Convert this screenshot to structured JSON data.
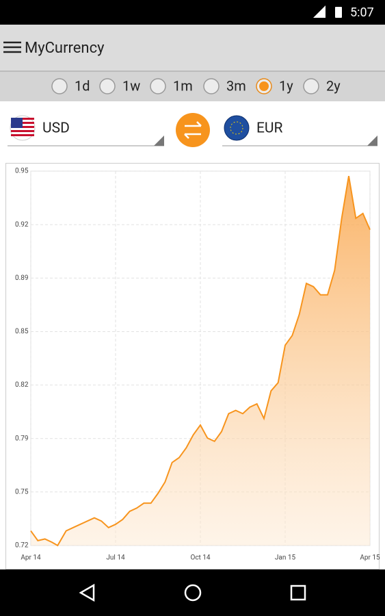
{
  "status_bar": {
    "time": "5:07"
  },
  "app_bar": {
    "title": "MyCurrency"
  },
  "periods": [
    {
      "label": "1d",
      "selected": false
    },
    {
      "label": "1w",
      "selected": false
    },
    {
      "label": "1m",
      "selected": false
    },
    {
      "label": "3m",
      "selected": false
    },
    {
      "label": "1y",
      "selected": true
    },
    {
      "label": "2y",
      "selected": false
    }
  ],
  "currency": {
    "from": "USD",
    "to": "EUR"
  },
  "chart_data": {
    "type": "area",
    "color": "#f7941d",
    "grid": true,
    "x": [
      0,
      0.25,
      0.5,
      0.75,
      0.95,
      1.25,
      1.5,
      1.75,
      2,
      2.25,
      2.5,
      2.75,
      3,
      3.25,
      3.5,
      3.75,
      4,
      4.25,
      4.5,
      4.75,
      5,
      5.25,
      5.5,
      5.75,
      6,
      6.25,
      6.5,
      6.75,
      7,
      7.25,
      7.5,
      7.75,
      8,
      8.25,
      8.5,
      8.75,
      9,
      9.25,
      9.5,
      9.75,
      10,
      10.25,
      10.5,
      10.75,
      11,
      11.25,
      11.5,
      11.75,
      12
    ],
    "values": [
      0.729,
      0.723,
      0.724,
      0.722,
      0.72,
      0.729,
      0.731,
      0.733,
      0.735,
      0.737,
      0.735,
      0.731,
      0.733,
      0.736,
      0.741,
      0.743,
      0.746,
      0.746,
      0.752,
      0.759,
      0.771,
      0.774,
      0.78,
      0.788,
      0.794,
      0.786,
      0.784,
      0.79,
      0.801,
      0.803,
      0.801,
      0.805,
      0.807,
      0.798,
      0.815,
      0.82,
      0.843,
      0.849,
      0.862,
      0.881,
      0.879,
      0.874,
      0.874,
      0.889,
      0.921,
      0.947,
      0.921,
      0.924,
      0.914
    ],
    "xlim": [
      0,
      12
    ],
    "xticks": [
      {
        "value": 0,
        "label": "Apr 14"
      },
      {
        "value": 3,
        "label": "Jul 14"
      },
      {
        "value": 6,
        "label": "Oct 14"
      },
      {
        "value": 9,
        "label": "Jan 15"
      },
      {
        "value": 12,
        "label": "Apr 15"
      }
    ],
    "ylim": [
      0.72,
      0.95
    ],
    "yticks": [
      {
        "value": 0.72,
        "label": "0.72"
      },
      {
        "value": 0.7529,
        "label": "0.75"
      },
      {
        "value": 0.7857,
        "label": "0.79"
      },
      {
        "value": 0.8186,
        "label": "0.82"
      },
      {
        "value": 0.8514,
        "label": "0.85"
      },
      {
        "value": 0.8843,
        "label": "0.89"
      },
      {
        "value": 0.9171,
        "label": "0.92"
      },
      {
        "value": 0.95,
        "label": "0.95"
      }
    ]
  }
}
